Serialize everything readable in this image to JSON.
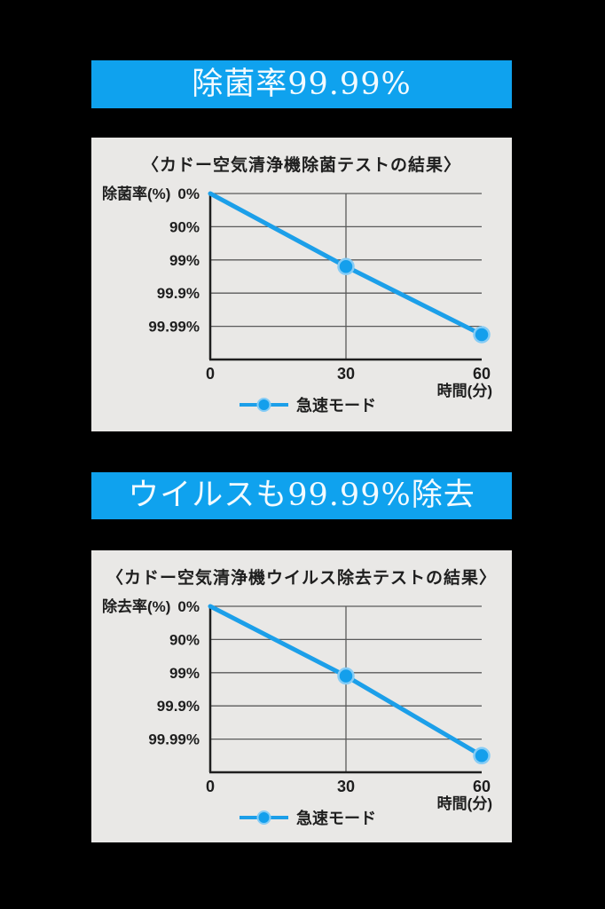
{
  "colors": {
    "page_bg": "#000000",
    "banner_bg": "#0FA2EE",
    "banner_text": "#F2FAFE",
    "panel_bg": "#E9E8E6",
    "line": "#1C9FE9",
    "marker": "#149FEC",
    "marker_halo": "#86CCF5",
    "grid": "#5A5A5A",
    "axis": "#1F1F1F",
    "text": "#1E1E1E"
  },
  "banners": [
    {
      "text": "除菌率99.99%"
    },
    {
      "text": "ウイルスも99.99%除去"
    }
  ],
  "chart_data": [
    {
      "type": "line",
      "title": "〈カドー空気清浄機除菌テストの結果〉",
      "ylabel": "除菌率(%)",
      "xlabel": "時間(分)",
      "y_ticks": [
        "0%",
        "90%",
        "99%",
        "99.9%",
        "99.99%"
      ],
      "y_scale": "log (each gridline = one decade of removal rate)",
      "x_ticks": [
        0,
        30,
        60
      ],
      "x_range": [
        0,
        60
      ],
      "grid": true,
      "legend": {
        "label": "急速モード",
        "position": "bottom-center"
      },
      "points": [
        {
          "x": 0,
          "rate_pct": 0,
          "plot_decade": 0,
          "marker": false
        },
        {
          "x": 30,
          "rate_pct": 99,
          "plot_decade": 2.2,
          "marker": true
        },
        {
          "x": 60,
          "rate_pct": 99.99,
          "plot_decade": 4.25,
          "marker": true
        }
      ]
    },
    {
      "type": "line",
      "title": "〈カドー空気清浄機ウイルス除去テストの結果〉",
      "ylabel": "除去率(%)",
      "xlabel": "時間(分)",
      "y_ticks": [
        "0%",
        "90%",
        "99%",
        "99.9%",
        "99.99%"
      ],
      "y_scale": "log (each gridline = one decade of removal rate)",
      "x_ticks": [
        0,
        30,
        60
      ],
      "x_range": [
        0,
        60
      ],
      "grid": true,
      "legend": {
        "label": "急速モード",
        "position": "bottom-center"
      },
      "points": [
        {
          "x": 0,
          "rate_pct": 0,
          "plot_decade": 0,
          "marker": false
        },
        {
          "x": 30,
          "rate_pct": 99,
          "plot_decade": 2.1,
          "marker": true
        },
        {
          "x": 60,
          "rate_pct": 99.99,
          "plot_decade": 4.5,
          "marker": true
        }
      ]
    }
  ]
}
